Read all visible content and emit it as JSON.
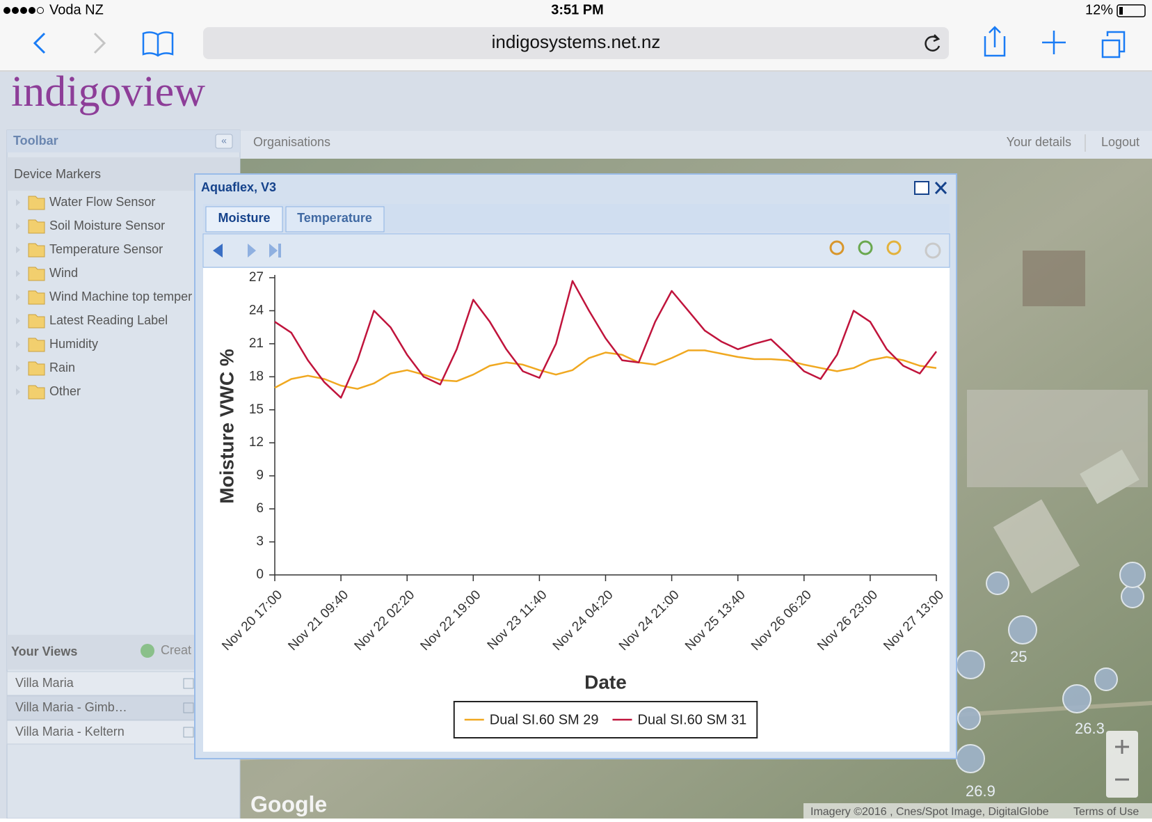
{
  "status_bar": {
    "carrier": "Voda NZ",
    "time": "3:51 PM",
    "battery": "12%"
  },
  "browser": {
    "url": "indigosystems.net.nz"
  },
  "app": {
    "logo": "indigoview",
    "nav": "Organisations",
    "user_links": [
      "Your details",
      "Logout"
    ]
  },
  "toolbar": {
    "title": "Toolbar",
    "section": "Device Markers",
    "items": [
      "Water Flow Sensor",
      "Soil Moisture Sensor",
      "Temperature Sensor",
      "Wind",
      "Wind Machine top temper",
      "Latest Reading Label",
      "Humidity",
      "Rain",
      "Other"
    ]
  },
  "views": {
    "title": "Your Views",
    "create": "Creat",
    "items": [
      "Villa Maria",
      "Villa Maria - Gimb…",
      "Villa Maria - Keltern"
    ]
  },
  "window": {
    "title": "Aquaflex, V3",
    "tabs": [
      "Moisture",
      "Temperature"
    ]
  },
  "chart_data": {
    "type": "line",
    "x_label": "Date",
    "y_label": "Moisture VWC %",
    "x": [
      "Nov 20 17:00",
      "Nov 20 21:10",
      "Nov 21 01:20",
      "Nov 21 05:30",
      "Nov 21 09:40",
      "Nov 21 13:50",
      "Nov 21 18:00",
      "Nov 21 22:10",
      "Nov 22 02:20",
      "Nov 22 06:30",
      "Nov 22 10:40",
      "Nov 22 14:50",
      "Nov 22 19:00",
      "Nov 22 23:10",
      "Nov 23 03:20",
      "Nov 23 07:30",
      "Nov 23 11:40",
      "Nov 23 15:50",
      "Nov 23 20:00",
      "Nov 24 00:10",
      "Nov 24 04:20",
      "Nov 24 08:30",
      "Nov 24 12:40",
      "Nov 24 16:50",
      "Nov 24 21:00",
      "Nov 25 01:10",
      "Nov 25 05:20",
      "Nov 25 09:30",
      "Nov 25 13:40",
      "Nov 25 17:50",
      "Nov 25 22:00",
      "Nov 26 02:10",
      "Nov 26 06:20",
      "Nov 26 10:30",
      "Nov 26 14:40",
      "Nov 26 18:50",
      "Nov 26 23:00",
      "Nov 27 03:10",
      "Nov 27 07:20",
      "Nov 27 11:30",
      "Nov 27 13:00"
    ],
    "xticks": [
      "Nov 20 17:00",
      "Nov 21 09:40",
      "Nov 22 02:20",
      "Nov 22 19:00",
      "Nov 23 11:40",
      "Nov 24 04:20",
      "Nov 24 21:00",
      "Nov 25 13:40",
      "Nov 26 06:20",
      "Nov 26 23:00",
      "Nov 27 13:00"
    ],
    "ylim": [
      0,
      27
    ],
    "yticks": [
      0,
      3,
      6,
      9,
      12,
      15,
      18,
      21,
      24,
      27
    ],
    "legend": "bottom",
    "series": [
      {
        "name": "Dual SI.60 SM 29",
        "color": "#f0a820",
        "values": [
          17.0,
          17.8,
          18.1,
          17.8,
          17.2,
          16.9,
          17.4,
          18.3,
          18.6,
          18.2,
          17.7,
          17.6,
          18.2,
          19.0,
          19.3,
          19.1,
          18.6,
          18.2,
          18.6,
          19.7,
          20.2,
          20.0,
          19.3,
          19.1,
          19.7,
          20.4,
          20.4,
          20.1,
          19.8,
          19.6,
          19.6,
          19.5,
          19.1,
          18.8,
          18.5,
          18.8,
          19.5,
          19.8,
          19.5,
          19.0,
          18.8
        ]
      },
      {
        "name": "Dual SI.60 SM 31",
        "color": "#c0143c",
        "values": [
          23.0,
          22.0,
          19.5,
          17.5,
          16.1,
          19.5,
          24.0,
          22.5,
          20.0,
          18.0,
          17.3,
          20.5,
          25.0,
          23.0,
          20.5,
          18.5,
          17.9,
          21.0,
          26.7,
          24.0,
          21.5,
          19.5,
          19.3,
          23.0,
          25.8,
          24.0,
          22.2,
          21.2,
          20.5,
          21.0,
          21.4,
          20.0,
          18.5,
          17.8,
          20.0,
          24.0,
          23.0,
          20.5,
          19.0,
          18.3,
          20.3
        ]
      }
    ]
  },
  "map": {
    "labels": [
      "25",
      "26.3",
      "26.9"
    ],
    "brand": "Google",
    "attribution": "Imagery ©2016 , Cnes/Spot Image, DigitalGlobe",
    "terms": "Terms of Use"
  }
}
